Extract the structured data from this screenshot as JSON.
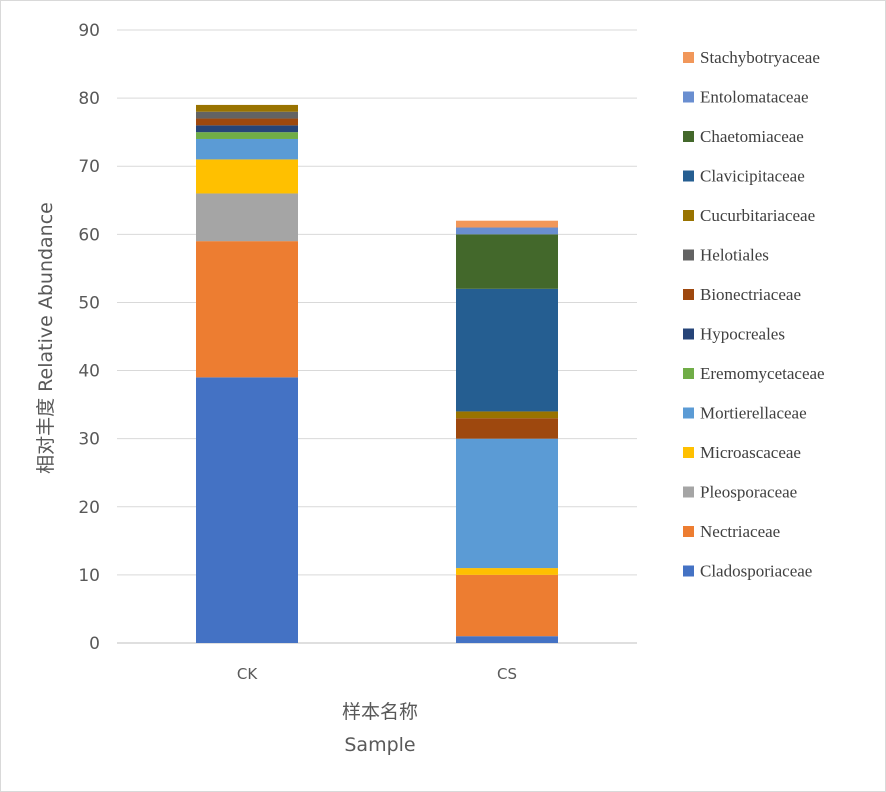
{
  "chart_data": {
    "type": "bar",
    "stacked": true,
    "categories": [
      "CK",
      "CS"
    ],
    "ylim": [
      0,
      90
    ],
    "yticks": [
      "0",
      "10",
      "20",
      "30",
      "40",
      "50",
      "60",
      "70",
      "80",
      "90"
    ],
    "xlabel_line1": "样本名称",
    "xlabel_line2": "Sample",
    "ylabel": "相对丰度 Relative Abundance",
    "grid": true,
    "legend_position": "right",
    "series": [
      {
        "name": "Cladosporiaceae",
        "color": "#4472C4",
        "values": [
          39,
          1
        ]
      },
      {
        "name": "Nectriaceae",
        "color": "#ED7D31",
        "values": [
          20,
          9
        ]
      },
      {
        "name": "Pleosporaceae",
        "color": "#A5A5A5",
        "values": [
          7,
          0
        ]
      },
      {
        "name": "Microascaceae",
        "color": "#FFC000",
        "values": [
          5,
          1
        ]
      },
      {
        "name": "Mortierellaceae",
        "color": "#5B9BD5",
        "values": [
          3,
          19
        ]
      },
      {
        "name": "Eremomycetaceae",
        "color": "#70AD47",
        "values": [
          1,
          0
        ]
      },
      {
        "name": "Hypocreales",
        "color": "#264478",
        "values": [
          1,
          0
        ]
      },
      {
        "name": "Bionectriaceae",
        "color": "#9E480E",
        "values": [
          1,
          3
        ]
      },
      {
        "name": "Helotiales",
        "color": "#636363",
        "values": [
          1,
          0
        ]
      },
      {
        "name": "Cucurbitariaceae",
        "color": "#997300",
        "values": [
          1,
          1
        ]
      },
      {
        "name": "Clavicipitaceae",
        "color": "#255E91",
        "values": [
          0,
          18
        ]
      },
      {
        "name": "Chaetomiaceae",
        "color": "#43682B",
        "values": [
          0,
          8
        ]
      },
      {
        "name": "Entolomataceae",
        "color": "#698ED0",
        "values": [
          0,
          1
        ]
      },
      {
        "name": "Stachybotryaceae",
        "color": "#F1975A",
        "values": [
          0,
          1
        ]
      }
    ]
  }
}
